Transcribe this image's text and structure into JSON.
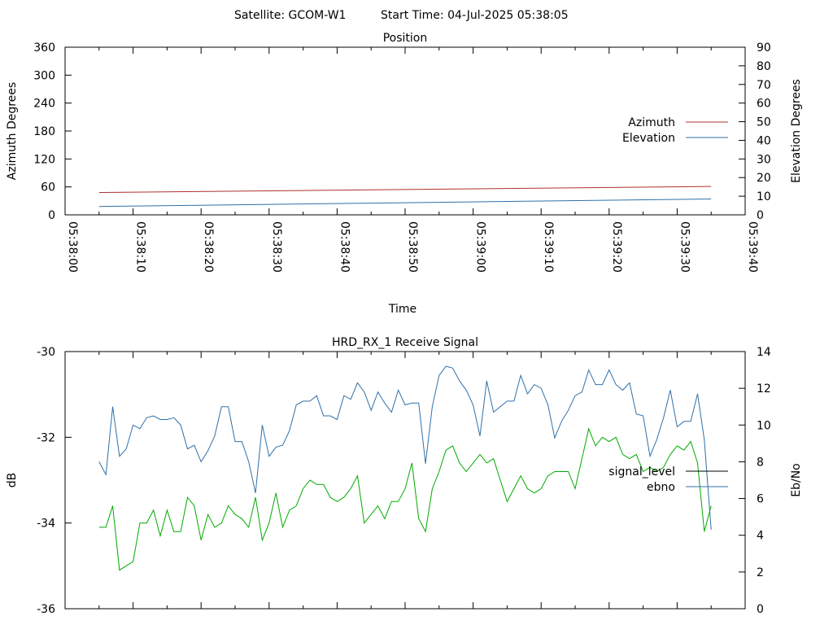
{
  "header": {
    "satellite": "Satellite: GCOM-W1",
    "start_time": "Start Time: 04-Jul-2025 05:38:05"
  },
  "chart_data": [
    {
      "type": "line",
      "title": "Position",
      "xlabel": "Time",
      "ylabel": "Azimuth Degrees",
      "y2label": "Elevation Degrees",
      "xlim": [
        "05:38:00",
        "05:39:40"
      ],
      "x_ticks": [
        "05:38:00",
        "05:38:10",
        "05:38:20",
        "05:38:30",
        "05:38:40",
        "05:38:50",
        "05:39:00",
        "05:39:10",
        "05:39:20",
        "05:39:30",
        "05:39:40"
      ],
      "ylim": [
        0,
        360
      ],
      "y_ticks": [
        0,
        60,
        120,
        180,
        240,
        300,
        360
      ],
      "y2lim": [
        0,
        90
      ],
      "y2_ticks": [
        0,
        10,
        20,
        30,
        40,
        50,
        60,
        70,
        80,
        90
      ],
      "legend_position": "right",
      "series": [
        {
          "name": "Azimuth",
          "axis": "y",
          "color": "#b03030",
          "x": [
            "05:38:05",
            "05:39:35"
          ],
          "values": [
            48,
            61
          ]
        },
        {
          "name": "Elevation",
          "axis": "y2",
          "color": "#3070a8",
          "x": [
            "05:38:05",
            "05:39:35"
          ],
          "values": [
            4.5,
            8.5
          ]
        }
      ]
    },
    {
      "type": "line",
      "title": "HRD_RX_1 Receive Signal",
      "xlabel": "",
      "ylabel": "dB",
      "y2label": "Eb/No",
      "xlim": [
        "05:38:00",
        "05:39:40"
      ],
      "x_ticks": [
        "05:38:00",
        "05:38:10",
        "05:38:20",
        "05:38:30",
        "05:38:40",
        "05:38:50",
        "05:39:00",
        "05:39:10",
        "05:39:20",
        "05:39:30",
        "05:39:40"
      ],
      "ylim": [
        -36,
        -30
      ],
      "y_ticks": [
        -36,
        -34,
        -32,
        -30
      ],
      "y2lim": [
        0,
        14
      ],
      "y2_ticks": [
        0,
        2,
        4,
        6,
        8,
        10,
        12,
        14
      ],
      "legend_position": "right",
      "series": [
        {
          "name": "signal_level",
          "axis": "y",
          "color": "#00aa00",
          "x": [
            "05:38:05",
            "05:38:06",
            "05:38:07",
            "05:38:08",
            "05:38:09",
            "05:38:10",
            "05:38:11",
            "05:38:12",
            "05:38:13",
            "05:38:14",
            "05:38:15",
            "05:38:16",
            "05:38:17",
            "05:38:18",
            "05:38:19",
            "05:38:20",
            "05:38:21",
            "05:38:22",
            "05:38:23",
            "05:38:24",
            "05:38:25",
            "05:38:26",
            "05:38:27",
            "05:38:28",
            "05:38:29",
            "05:38:30",
            "05:38:31",
            "05:38:32",
            "05:38:33",
            "05:38:34",
            "05:38:35",
            "05:38:36",
            "05:38:37",
            "05:38:38",
            "05:38:39",
            "05:38:40",
            "05:38:41",
            "05:38:42",
            "05:38:43",
            "05:38:44",
            "05:38:45",
            "05:38:46",
            "05:38:47",
            "05:38:48",
            "05:38:49",
            "05:38:50",
            "05:38:51",
            "05:38:52",
            "05:38:53",
            "05:38:54",
            "05:38:55",
            "05:38:56",
            "05:38:57",
            "05:38:58",
            "05:38:59",
            "05:39:00",
            "05:39:01",
            "05:39:02",
            "05:39:03",
            "05:39:04",
            "05:39:05",
            "05:39:06",
            "05:39:07",
            "05:39:08",
            "05:39:09",
            "05:39:10",
            "05:39:11",
            "05:39:12",
            "05:39:13",
            "05:39:14",
            "05:39:15",
            "05:39:16",
            "05:39:17",
            "05:39:18",
            "05:39:19",
            "05:39:20",
            "05:39:21",
            "05:39:22",
            "05:39:23",
            "05:39:24",
            "05:39:25",
            "05:39:26",
            "05:39:27",
            "05:39:28",
            "05:39:29",
            "05:39:30",
            "05:39:31",
            "05:39:32",
            "05:39:33",
            "05:39:34",
            "05:39:35"
          ],
          "values": [
            -34.1,
            -34.1,
            -33.6,
            -35.1,
            -35.0,
            -34.9,
            -34.0,
            -34.0,
            -33.7,
            -34.3,
            -33.7,
            -34.2,
            -34.2,
            -33.4,
            -33.6,
            -34.4,
            -33.8,
            -34.1,
            -34.0,
            -33.6,
            -33.8,
            -33.9,
            -34.1,
            -33.4,
            -34.4,
            -34.0,
            -33.3,
            -34.1,
            -33.7,
            -33.6,
            -33.2,
            -33.0,
            -33.1,
            -33.1,
            -33.4,
            -33.5,
            -33.4,
            -33.2,
            -32.9,
            -34.0,
            -33.8,
            -33.6,
            -33.9,
            -33.5,
            -33.5,
            -33.2,
            -32.6,
            -33.9,
            -34.2,
            -33.2,
            -32.8,
            -32.3,
            -32.2,
            -32.6,
            -32.8,
            -32.6,
            -32.4,
            -32.6,
            -32.5,
            -33.0,
            -33.5,
            -33.2,
            -32.9,
            -33.2,
            -33.3,
            -33.2,
            -32.9,
            -32.8,
            -32.8,
            -32.8,
            -33.2,
            -32.5,
            -31.8,
            -32.2,
            -32.0,
            -32.1,
            -32.0,
            -32.4,
            -32.5,
            -32.4,
            -32.8,
            -32.7,
            -32.8,
            -32.7,
            -32.4,
            -32.2,
            -32.3,
            -32.1,
            -32.6,
            -34.2,
            -33.6
          ],
          "hidden_in_legend_overlap": false
        },
        {
          "name": "ebno",
          "axis": "y2",
          "color": "#3070a8",
          "x": [
            "05:38:05",
            "05:38:06",
            "05:38:07",
            "05:38:08",
            "05:38:09",
            "05:38:10",
            "05:38:11",
            "05:38:12",
            "05:38:13",
            "05:38:14",
            "05:38:15",
            "05:38:16",
            "05:38:17",
            "05:38:18",
            "05:38:19",
            "05:38:20",
            "05:38:21",
            "05:38:22",
            "05:38:23",
            "05:38:24",
            "05:38:25",
            "05:38:26",
            "05:38:27",
            "05:38:28",
            "05:38:29",
            "05:38:30",
            "05:38:31",
            "05:38:32",
            "05:38:33",
            "05:38:34",
            "05:38:35",
            "05:38:36",
            "05:38:37",
            "05:38:38",
            "05:38:39",
            "05:38:40",
            "05:38:41",
            "05:38:42",
            "05:38:43",
            "05:38:44",
            "05:38:45",
            "05:38:46",
            "05:38:47",
            "05:38:48",
            "05:38:49",
            "05:38:50",
            "05:38:51",
            "05:38:52",
            "05:38:53",
            "05:38:54",
            "05:38:55",
            "05:38:56",
            "05:38:57",
            "05:38:58",
            "05:38:59",
            "05:39:00",
            "05:39:01",
            "05:39:02",
            "05:39:03",
            "05:39:04",
            "05:39:05",
            "05:39:06",
            "05:39:07",
            "05:39:08",
            "05:39:09",
            "05:39:10",
            "05:39:11",
            "05:39:12",
            "05:39:13",
            "05:39:14",
            "05:39:15",
            "05:39:16",
            "05:39:17",
            "05:39:18",
            "05:39:19",
            "05:39:20",
            "05:39:21",
            "05:39:22",
            "05:39:23",
            "05:39:24",
            "05:39:25",
            "05:39:26",
            "05:39:27",
            "05:39:28",
            "05:39:29",
            "05:39:30",
            "05:39:31",
            "05:39:32",
            "05:39:33",
            "05:39:34",
            "05:39:35"
          ],
          "values": [
            8.0,
            7.3,
            11.0,
            8.3,
            8.7,
            10.0,
            9.8,
            10.4,
            10.5,
            10.3,
            10.3,
            10.4,
            10.0,
            8.7,
            8.9,
            8.0,
            8.6,
            9.4,
            11.0,
            11.0,
            9.1,
            9.1,
            8.0,
            6.3,
            10.0,
            8.3,
            8.8,
            8.9,
            9.7,
            11.1,
            11.3,
            11.3,
            11.6,
            10.5,
            10.5,
            10.3,
            11.6,
            11.4,
            12.3,
            11.8,
            10.8,
            11.8,
            11.2,
            10.7,
            11.9,
            11.1,
            11.2,
            11.2,
            7.9,
            11.0,
            12.7,
            13.2,
            13.1,
            12.4,
            11.9,
            11.1,
            9.4,
            12.4,
            10.7,
            11.0,
            11.3,
            11.3,
            12.7,
            11.7,
            12.2,
            12.0,
            11.1,
            9.3,
            10.2,
            10.8,
            11.6,
            11.8,
            13.0,
            12.2,
            12.2,
            13.0,
            12.2,
            11.9,
            12.3,
            10.6,
            10.5,
            8.3,
            9.2,
            10.4,
            11.9,
            9.9,
            10.2,
            10.2,
            11.7,
            9.2,
            4.3
          ]
        }
      ]
    }
  ]
}
